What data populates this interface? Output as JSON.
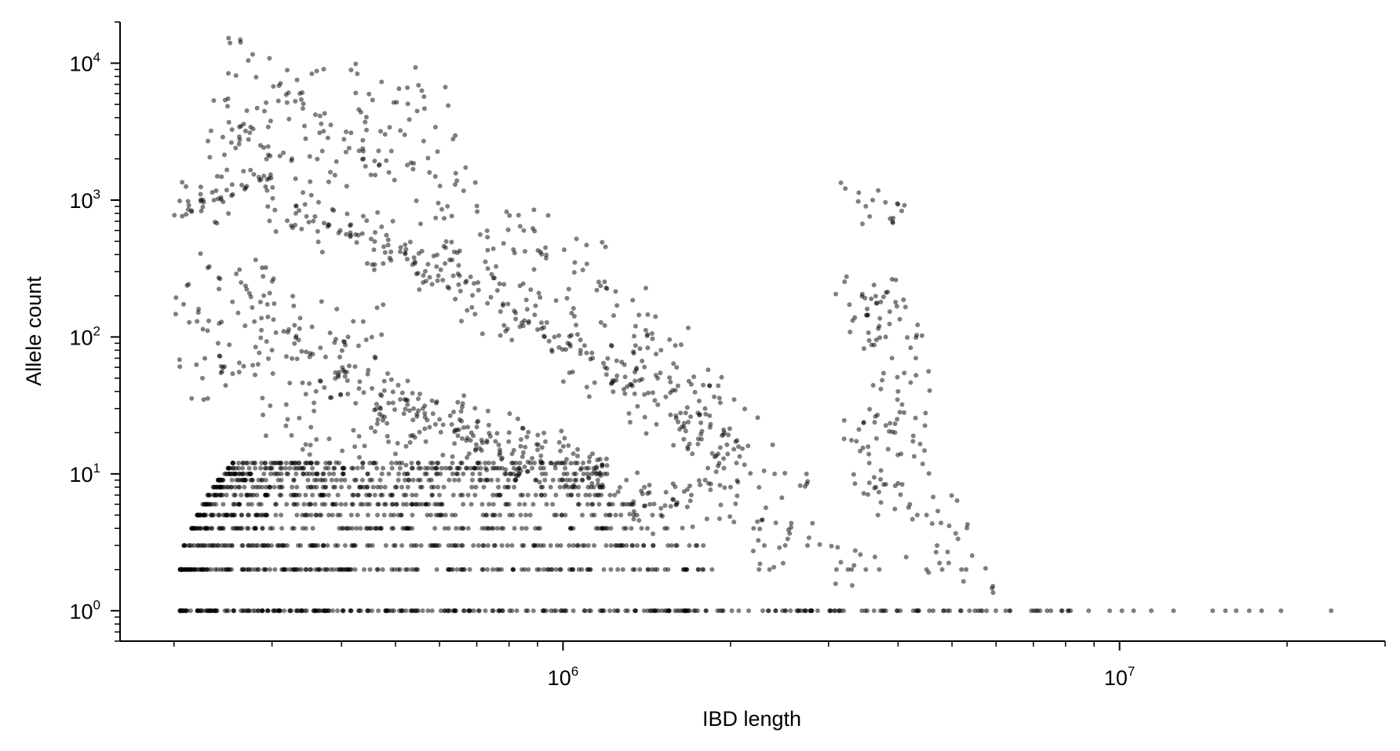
{
  "chart_data": {
    "type": "scatter",
    "title": "",
    "xlabel": "IBD length",
    "ylabel": "Allele count",
    "xscale": "log",
    "yscale": "log",
    "xlim": [
      160000,
      30000000
    ],
    "ylim": [
      0.6,
      20000
    ],
    "grid": false,
    "legend": "none",
    "x_ticks": [
      {
        "value": 1000000,
        "base": "10",
        "exp": "6"
      },
      {
        "value": 10000000,
        "base": "10",
        "exp": "7"
      }
    ],
    "y_ticks": [
      {
        "value": 1,
        "base": "10",
        "exp": "0"
      },
      {
        "value": 10,
        "base": "10",
        "exp": "1"
      },
      {
        "value": 100,
        "base": "10",
        "exp": "2"
      },
      {
        "value": 1000,
        "base": "10",
        "exp": "3"
      },
      {
        "value": 10000,
        "base": "10",
        "exp": "4"
      }
    ],
    "marker_color": "#000000",
    "marker_alpha": 0.5,
    "series": [
      {
        "points": [
          [
            277000,
            11600
          ],
          [
            472000,
            7300
          ],
          [
            550000,
            6900
          ],
          [
            340000,
            6100
          ],
          [
            308000,
            5300
          ],
          [
            282000,
            4700
          ],
          [
            373000,
            4300
          ],
          [
            251000,
            3700
          ],
          [
            488000,
            3400
          ],
          [
            416000,
            3100
          ],
          [
            262000,
            2900
          ],
          [
            562000,
            2700
          ],
          [
            258000,
            2400
          ],
          [
            310000,
            2100
          ],
          [
            438000,
            2000
          ],
          [
            525000,
            1800
          ],
          [
            382000,
            1600
          ],
          [
            290000,
            1500
          ],
          [
            640000,
            1300
          ],
          [
            268000,
            1200
          ],
          [
            255000,
            1100
          ],
          [
            236000,
            1000
          ],
          [
            212000,
            980
          ],
          [
            331000,
            800
          ],
          [
            346000,
            760
          ],
          [
            372000,
            680
          ],
          [
            398000,
            600
          ],
          [
            424000,
            560
          ],
          [
            452000,
            520
          ],
          [
            485000,
            470
          ],
          [
            510000,
            420
          ],
          [
            540000,
            380
          ],
          [
            572000,
            340
          ],
          [
            603000,
            310
          ],
          [
            635000,
            280
          ],
          [
            668000,
            250
          ],
          [
            705000,
            220
          ],
          [
            742000,
            195
          ],
          [
            780000,
            170
          ],
          [
            822000,
            150
          ],
          [
            868000,
            130
          ],
          [
            915000,
            115
          ],
          [
            965000,
            100
          ],
          [
            1020000,
            90
          ],
          [
            1075000,
            80
          ],
          [
            1130000,
            70
          ],
          [
            1190000,
            60
          ],
          [
            1250000,
            52
          ],
          [
            1320000,
            45
          ],
          [
            1400000,
            38
          ],
          [
            1480000,
            32
          ],
          [
            1560000,
            27
          ],
          [
            1650000,
            22
          ],
          [
            1750000,
            18
          ],
          [
            1900000,
            14
          ],
          [
            2050000,
            12
          ],
          [
            2400000,
            10
          ],
          [
            3200000,
            18
          ],
          [
            3600000,
            1000
          ],
          [
            3500000,
            900
          ],
          [
            3620000,
            240
          ],
          [
            3580000,
            190
          ],
          [
            3520000,
            160
          ],
          [
            3700000,
            120
          ],
          [
            3800000,
            100
          ],
          [
            3900000,
            70
          ],
          [
            4000000,
            40
          ],
          [
            4100000,
            28
          ],
          [
            3950000,
            20
          ],
          [
            4050000,
            14
          ],
          [
            3550000,
            12
          ],
          [
            3650000,
            8
          ],
          [
            4200000,
            6
          ],
          [
            4500000,
            5
          ],
          [
            4700000,
            3
          ],
          [
            5200000,
            2
          ],
          [
            3300000,
            2
          ],
          [
            2750000,
            3
          ],
          [
            2300000,
            3
          ],
          [
            2200000,
            4
          ],
          [
            2000000,
            8
          ],
          [
            1800000,
            9
          ],
          [
            1700000,
            7
          ],
          [
            1600000,
            6
          ],
          [
            1500000,
            5
          ],
          [
            215000,
            840
          ],
          [
            220000,
            130
          ],
          [
            225000,
            50
          ],
          [
            230000,
            320
          ],
          [
            240000,
            90
          ],
          [
            245000,
            60
          ],
          [
            300000,
            80
          ],
          [
            360000,
            40
          ],
          [
            420000,
            130
          ],
          [
            460000,
            70
          ],
          [
            520000,
            35
          ],
          [
            600000,
            25
          ],
          [
            700000,
            22
          ],
          [
            800000,
            20
          ],
          [
            900000,
            15
          ],
          [
            1000000,
            12
          ],
          [
            1100000,
            11
          ],
          [
            320000,
            25
          ],
          [
            380000,
            18
          ],
          [
            440000,
            16
          ],
          [
            500000,
            14
          ],
          [
            620000,
            900
          ],
          [
            710000,
            560
          ],
          [
            850000,
            600
          ],
          [
            930000,
            450
          ],
          [
            1050000,
            350
          ],
          [
            1150000,
            220
          ],
          [
            1250000,
            170
          ],
          [
            1350000,
            120
          ],
          [
            1500000,
            80
          ],
          [
            1600000,
            60
          ],
          [
            1700000,
            45
          ],
          [
            1800000,
            30
          ],
          [
            1950000,
            20
          ],
          [
            2150000,
            16
          ],
          [
            264000,
            250
          ],
          [
            286000,
            180
          ],
          [
            295000,
            140
          ],
          [
            315000,
            110
          ],
          [
            335000,
            95
          ],
          [
            355000,
            75
          ],
          [
            390000,
            55
          ],
          [
            410000,
            48
          ],
          [
            430000,
            42
          ],
          [
            470000,
            38
          ],
          [
            495000,
            33
          ],
          [
            530000,
            29
          ],
          [
            565000,
            26
          ],
          [
            590000,
            23
          ],
          [
            650000,
            21
          ],
          [
            690000,
            19
          ],
          [
            730000,
            17
          ],
          [
            770000,
            15
          ],
          [
            810000,
            14
          ],
          [
            880000,
            13
          ],
          [
            950000,
            12
          ],
          [
            1080000,
            11
          ],
          [
            1200000,
            10
          ],
          [
            1300000,
            9
          ],
          [
            1400000,
            8
          ]
        ]
      }
    ],
    "bands": [
      {
        "y": 1,
        "x_min": 205000,
        "x_max": 8300000
      },
      {
        "y": 2,
        "x_min": 205000,
        "x_max": 1900000
      },
      {
        "y": 3,
        "x_min": 208000,
        "x_max": 1800000
      },
      {
        "y": 4,
        "x_min": 215000,
        "x_max": 1700000
      },
      {
        "y": 5,
        "x_min": 220000,
        "x_max": 1550000
      },
      {
        "y": 6,
        "x_min": 225000,
        "x_max": 1450000
      },
      {
        "y": 7,
        "x_min": 230000,
        "x_max": 1350000
      },
      {
        "y": 8,
        "x_min": 235000,
        "x_max": 1300000
      },
      {
        "y": 9,
        "x_min": 240000,
        "x_max": 1250000
      },
      {
        "y": 10,
        "x_min": 245000,
        "x_max": 1200000
      },
      {
        "y": 11,
        "x_min": 250000,
        "x_max": 1150000
      },
      {
        "y": 12,
        "x_min": 255000,
        "x_max": 1100000
      }
    ],
    "sparse_y1": [
      8800000,
      9600000,
      10100000,
      10600000,
      11400000,
      12500000,
      14700000,
      15500000,
      16200000,
      17100000,
      18000000,
      19500000,
      24000000
    ],
    "sparse_y2": [
      2250000,
      2350000,
      3100000,
      3250000,
      3500000,
      3700000,
      4500000,
      4800000,
      5300000
    ]
  }
}
